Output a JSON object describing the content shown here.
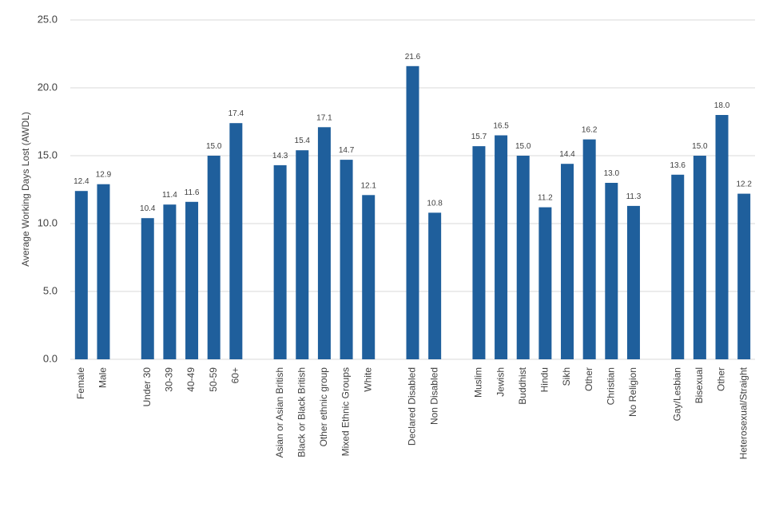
{
  "chart_data": {
    "type": "bar",
    "y_label": "Average Working Days Lost (AWDL)",
    "categories": [
      "Female",
      "Male",
      null,
      "Under 30",
      "30-39",
      "40-49",
      "50-59",
      "60+",
      null,
      "Asian or Asian British",
      "Black or Black British",
      "Other ethnic group",
      "Mixed Ethnic Groups",
      "White",
      null,
      "Declared Disabled",
      "Non Disabled",
      null,
      "Muslim",
      "Jewish",
      "Buddhist",
      "Hindu",
      "Sikh",
      "Other",
      "Christian",
      "No Religion",
      null,
      "Gay/Lesbian",
      "Bisexual",
      "Other",
      "Heterosexual/Straight"
    ],
    "values": [
      12.4,
      12.9,
      null,
      10.4,
      11.4,
      11.6,
      15.0,
      17.4,
      null,
      14.3,
      15.4,
      17.1,
      14.7,
      12.1,
      null,
      21.6,
      10.8,
      null,
      15.7,
      16.5,
      15.0,
      11.2,
      14.4,
      16.2,
      13.0,
      11.3,
      null,
      13.6,
      15.0,
      18.0,
      12.2
    ],
    "value_labels": [
      "12.4",
      "12.9",
      null,
      "10.4",
      "11.4",
      "11.6",
      "15.0",
      "17.4",
      null,
      "14.3",
      "15.4",
      "17.1",
      "14.7",
      "12.1",
      null,
      "21.6",
      "10.8",
      null,
      "15.7",
      "16.5",
      "15.0",
      "11.2",
      "14.4",
      "16.2",
      "13.0",
      "11.3",
      null,
      "13.6",
      "15.0",
      "18.0",
      "12.2"
    ],
    "color": "#1f5f9c",
    "ylim": [
      0,
      25
    ],
    "yticks": [
      {
        "value": 0,
        "label": "0.0"
      },
      {
        "value": 5,
        "label": "5.0"
      },
      {
        "value": 10,
        "label": "10.0"
      },
      {
        "value": 15,
        "label": "15.0"
      },
      {
        "value": 20,
        "label": "20.0"
      },
      {
        "value": 25,
        "label": "25.0"
      }
    ],
    "grid": true
  }
}
